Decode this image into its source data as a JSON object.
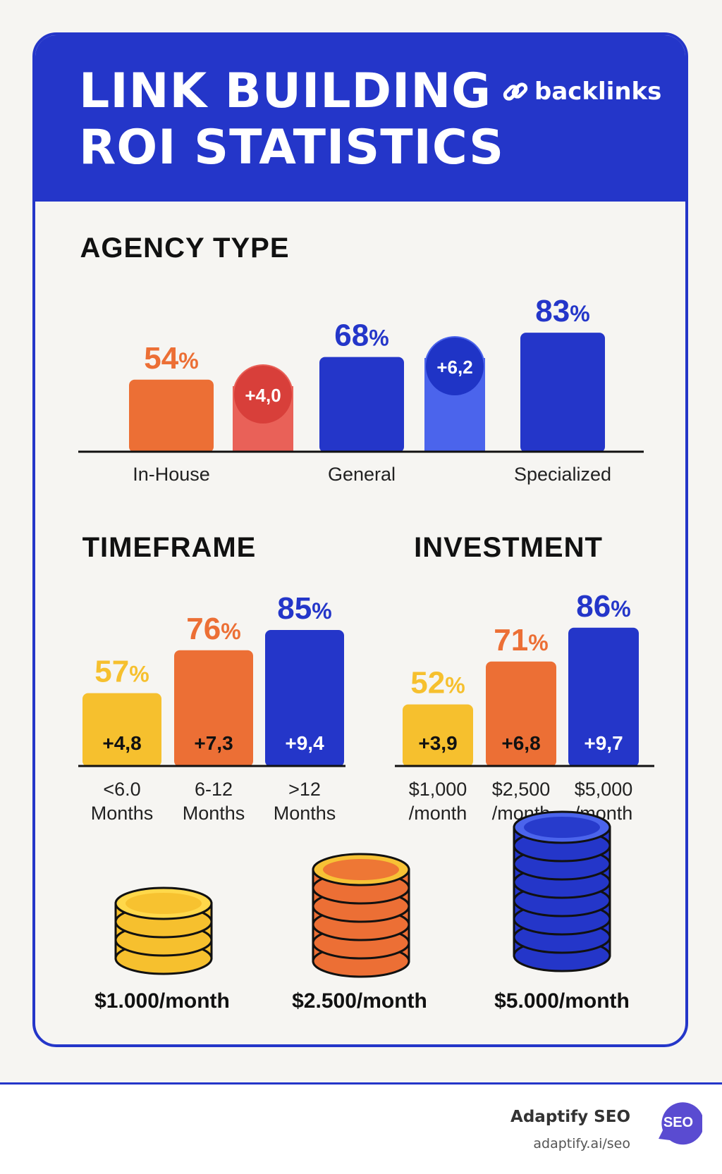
{
  "header": {
    "title_line1": "LINK BUILDING",
    "title_line2": "ROI STATISTICS",
    "brand_label": "backlinks",
    "brand_icon": "link-icon"
  },
  "colors": {
    "blue": "#2436c9",
    "orange": "#ec6f35",
    "yellow": "#f6c02e",
    "red": "#e0463e",
    "light_blue": "#4b64ec",
    "dark": "#111111"
  },
  "chart_data": [
    {
      "type": "bar",
      "title": "AGENCY TYPE",
      "categories": [
        "In-House",
        "General",
        "Specialized"
      ],
      "values": [
        54,
        68,
        83
      ],
      "value_labels": [
        "54%",
        "68%",
        "83%"
      ],
      "bar_colors": [
        "#ec6f35",
        "#2436c9",
        "#2436c9"
      ],
      "increments": [
        {
          "between": [
            "In-House",
            "General"
          ],
          "label": "+4,0",
          "color": "#e0463e"
        },
        {
          "between": [
            "General",
            "Specialized"
          ],
          "label": "+6,2",
          "color": "#4b64ec"
        }
      ]
    },
    {
      "type": "bar",
      "title": "TIMEFRAME",
      "categories": [
        "<6.0 Months",
        "6-12 Months",
        ">12 Months"
      ],
      "category_lines": [
        [
          "<6.0",
          "Months"
        ],
        [
          "6-12",
          "Months"
        ],
        [
          ">12",
          "Months"
        ]
      ],
      "values": [
        57,
        76,
        85
      ],
      "value_labels": [
        "57%",
        "76%",
        "85%"
      ],
      "inner_labels": [
        "+4,8",
        "+7,3",
        "+9,4"
      ],
      "bar_colors": [
        "#f6c02e",
        "#ec6f35",
        "#2436c9"
      ]
    },
    {
      "type": "bar",
      "title": "INVESTMENT",
      "categories": [
        "$1,000 /month",
        "$2,500 /month",
        "$5,000 /month"
      ],
      "category_lines": [
        [
          "$1,000",
          "/month"
        ],
        [
          "$2,500",
          "/month"
        ],
        [
          "$5,000",
          "/month"
        ]
      ],
      "values": [
        52,
        71,
        86
      ],
      "value_labels": [
        "52%",
        "71%",
        "86%"
      ],
      "inner_labels": [
        "+3,9",
        "+6,8",
        "+9,7"
      ],
      "bar_colors": [
        "#f6c02e",
        "#ec6f35",
        "#2436c9"
      ]
    }
  ],
  "coin_stacks": [
    {
      "label": "$1.000/month",
      "coins": 3,
      "color": "#f6c02e",
      "icon": "coin-stack-icon"
    },
    {
      "label": "$2.500/month",
      "coins": 5,
      "color": "#ec6f35",
      "icon": "coin-stack-icon"
    },
    {
      "label": "$5.000/month",
      "coins": 7,
      "color": "#2436c9",
      "icon": "coin-stack-icon"
    }
  ],
  "footer": {
    "company": "Adaptify SEO",
    "url": "adaptify.ai/seo",
    "badge": "SEO"
  }
}
